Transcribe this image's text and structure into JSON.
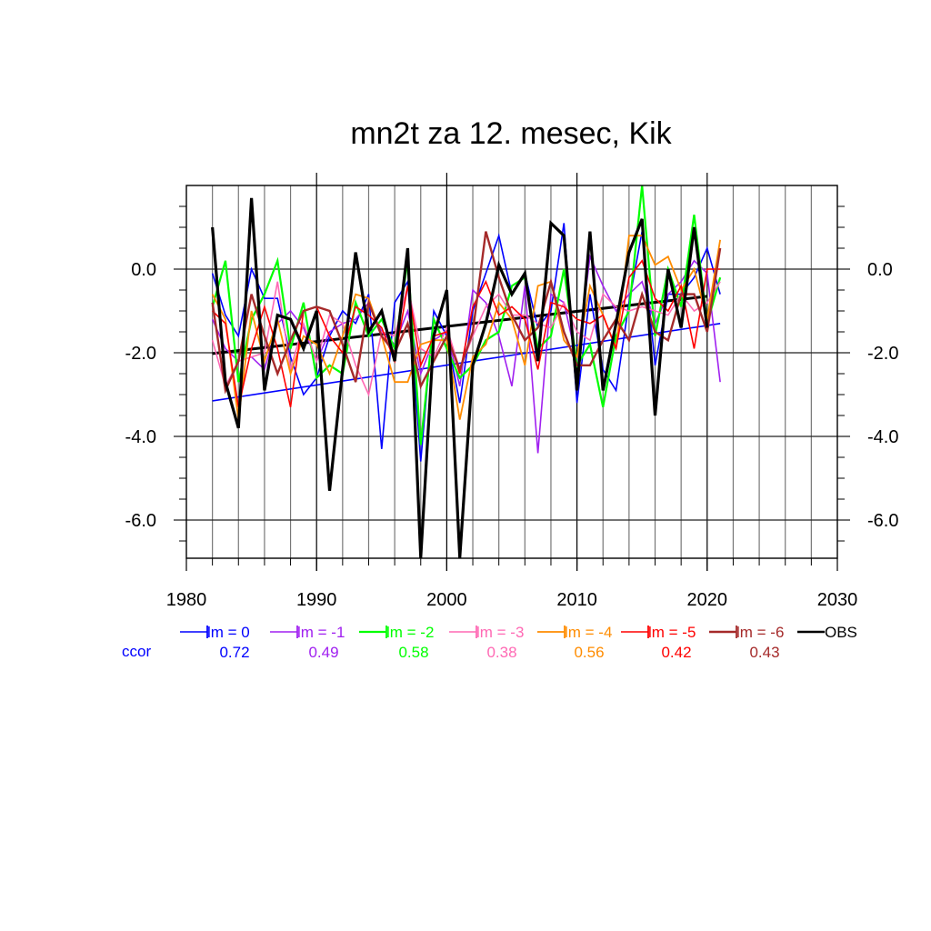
{
  "chart_data": {
    "type": "line",
    "title": "mn2t za 12. mesec, Kik",
    "xlabel": "",
    "ylabel": "",
    "xlim": [
      1980,
      2030
    ],
    "ylim": [
      -6.9,
      2.0
    ],
    "xticks": [
      1980,
      1990,
      2000,
      2010,
      2020,
      2030
    ],
    "xtick_labels": [
      "1980",
      "1990",
      "2000",
      "2010",
      "2020",
      "2030"
    ],
    "yticks": [
      0,
      -2,
      -4,
      -6
    ],
    "ytick_labels": [
      "0.0",
      "-2.0",
      "-4.0",
      "-6.0"
    ],
    "grid": true,
    "legend_position": "bottom",
    "ccor_label": "ccor",
    "x": [
      1982,
      1983,
      1984,
      1985,
      1986,
      1987,
      1988,
      1989,
      1990,
      1991,
      1992,
      1993,
      1994,
      1995,
      1996,
      1997,
      1998,
      1999,
      2000,
      2001,
      2002,
      2003,
      2004,
      2005,
      2006,
      2007,
      2008,
      2009,
      2010,
      2011,
      2012,
      2013,
      2014,
      2015,
      2016,
      2017,
      2018,
      2019,
      2020,
      2021
    ],
    "series": [
      {
        "name": "lm = 0",
        "color": "#0000ff",
        "ccor": "0.72",
        "width": 1.6,
        "values": [
          -0.1,
          -1.1,
          -1.6,
          0.0,
          -0.7,
          -0.7,
          -2.1,
          -3.0,
          -2.6,
          -1.6,
          -1.0,
          -1.3,
          -0.6,
          -4.3,
          -0.8,
          -0.3,
          -4.6,
          -1.0,
          -1.6,
          -3.2,
          -1.0,
          -0.1,
          0.8,
          -0.6,
          -0.1,
          -1.4,
          -1.0,
          1.1,
          -3.2,
          -0.6,
          -2.4,
          -2.9,
          -0.8,
          0.9,
          -2.3,
          -0.6,
          -0.6,
          -0.2,
          0.5,
          -0.6
        ]
      },
      {
        "name": "lm = -1",
        "color": "#a020f0",
        "ccor": "0.49",
        "width": 1.6,
        "values": [
          -1.2,
          -1.9,
          -2.2,
          -2.1,
          -2.4,
          -1.3,
          -1.0,
          -1.4,
          -2.2,
          -1.5,
          -1.3,
          -1.2,
          -0.8,
          -1.5,
          -1.8,
          -1.0,
          -2.5,
          -1.7,
          -1.5,
          -2.8,
          -0.5,
          -0.8,
          -1.6,
          -2.8,
          -0.4,
          -4.4,
          -0.6,
          -0.8,
          -2.2,
          0.3,
          -0.4,
          -1.0,
          -0.6,
          -0.3,
          -1.3,
          -0.6,
          -0.3,
          0.2,
          -0.1,
          -2.7
        ]
      },
      {
        "name": "lm = -2",
        "color": "#00ff00",
        "ccor": "0.58",
        "width": 2.2,
        "values": [
          -0.9,
          0.2,
          -2.7,
          -1.2,
          -0.6,
          0.2,
          -1.9,
          -0.8,
          -2.6,
          -2.3,
          -2.5,
          -0.8,
          -1.6,
          -1.2,
          -1.9,
          0.2,
          -4.2,
          -1.2,
          -1.9,
          -2.6,
          -2.3,
          -1.7,
          -1.5,
          -0.4,
          -0.2,
          -1.9,
          -1.6,
          0.0,
          -2.3,
          -1.8,
          -3.3,
          -1.6,
          -1.0,
          2.0,
          -1.6,
          0.0,
          -0.9,
          1.3,
          -1.3,
          -0.2
        ]
      },
      {
        "name": "lm = -3",
        "color": "#ff69b4",
        "ccor": "0.38",
        "width": 1.6,
        "values": [
          -1.7,
          -2.8,
          -2.2,
          -2.1,
          -2.0,
          -0.3,
          -2.4,
          -1.3,
          -2.2,
          -1.1,
          -1.3,
          -2.3,
          -3.0,
          -1.5,
          -1.6,
          -0.4,
          -1.9,
          -2.1,
          -1.4,
          -2.4,
          -1.6,
          -0.9,
          -0.6,
          -1.1,
          -1.1,
          -1.3,
          -1.4,
          -0.8,
          -1.5,
          -1.7,
          -0.6,
          -0.9,
          -1.0,
          -0.9,
          -1.0,
          -1.1,
          -0.6,
          -1.0,
          -0.8,
          -0.3
        ]
      },
      {
        "name": "lm = -4",
        "color": "#ff8c00",
        "ccor": "0.56",
        "width": 1.8,
        "values": [
          -0.6,
          -1.2,
          -3.6,
          -1.0,
          -2.2,
          -1.2,
          -2.5,
          -1.6,
          -1.8,
          -2.5,
          -1.6,
          -0.6,
          -0.7,
          -1.6,
          -2.7,
          -2.7,
          -1.8,
          -1.7,
          -1.7,
          -3.6,
          -2.1,
          -1.8,
          -0.8,
          -1.2,
          -2.3,
          -0.4,
          -0.3,
          -1.7,
          -2.1,
          -0.4,
          -1.1,
          -1.9,
          0.8,
          0.8,
          0.1,
          0.3,
          -0.5,
          0.0,
          -1.2,
          0.7
        ]
      },
      {
        "name": "lm = -5",
        "color": "#ff0000",
        "ccor": "0.42",
        "width": 1.6,
        "values": [
          -1.0,
          -1.3,
          -3.3,
          -1.9,
          -0.9,
          -1.9,
          -3.3,
          -1.0,
          -0.9,
          -1.6,
          -2.0,
          -0.9,
          -1.1,
          -1.4,
          -2.2,
          -0.4,
          -2.3,
          -1.6,
          -1.5,
          -2.5,
          -0.9,
          -0.3,
          -1.1,
          -0.9,
          -1.2,
          -2.4,
          -0.8,
          -0.9,
          -1.2,
          -1.3,
          -1.1,
          -1.9,
          -0.2,
          0.2,
          -0.7,
          -1.0,
          -0.4,
          -1.9,
          0.0,
          0.0
        ]
      },
      {
        "name": "lm = -6",
        "color": "#a52a2a",
        "ccor": "0.43",
        "width": 2.4,
        "values": [
          -0.8,
          -2.9,
          -2.2,
          -0.6,
          -1.6,
          -2.5,
          -1.7,
          -1.0,
          -0.9,
          -1.0,
          -1.8,
          -2.7,
          -0.8,
          -1.6,
          -2.0,
          -1.3,
          -2.8,
          -2.2,
          -1.6,
          -2.4,
          -1.5,
          0.9,
          -0.2,
          -1.1,
          -1.7,
          -1.4,
          -0.3,
          -1.5,
          -2.3,
          -2.3,
          -1.7,
          -1.2,
          -1.7,
          -0.6,
          -1.5,
          -1.7,
          -0.6,
          -0.6,
          -1.5,
          0.5
        ]
      },
      {
        "name": "OBS",
        "color": "#000000",
        "ccor": "",
        "width": 3.2,
        "values": [
          1.0,
          -2.7,
          -3.8,
          1.7,
          -2.9,
          -1.1,
          -1.2,
          -1.9,
          -1.0,
          -5.3,
          -2.4,
          0.4,
          -1.5,
          -1.0,
          -2.2,
          0.5,
          -6.9,
          -1.6,
          -0.5,
          -6.9,
          -2.3,
          -1.3,
          0.1,
          -0.6,
          -0.1,
          -2.2,
          1.1,
          0.8,
          -2.9,
          0.9,
          -2.9,
          -1.3,
          0.4,
          1.2,
          -3.5,
          0.0,
          -1.4,
          1.0,
          -1.4,
          null
        ]
      }
    ],
    "trend_lines": [
      {
        "name": "OBS trend",
        "color": "#000000",
        "x": [
          1982,
          2020
        ],
        "y": [
          -2.02,
          -0.65
        ]
      },
      {
        "name": "lm = 0 trend",
        "color": "#0000ff",
        "x": [
          1982,
          2021
        ],
        "y": [
          -3.15,
          -1.3
        ]
      }
    ]
  }
}
